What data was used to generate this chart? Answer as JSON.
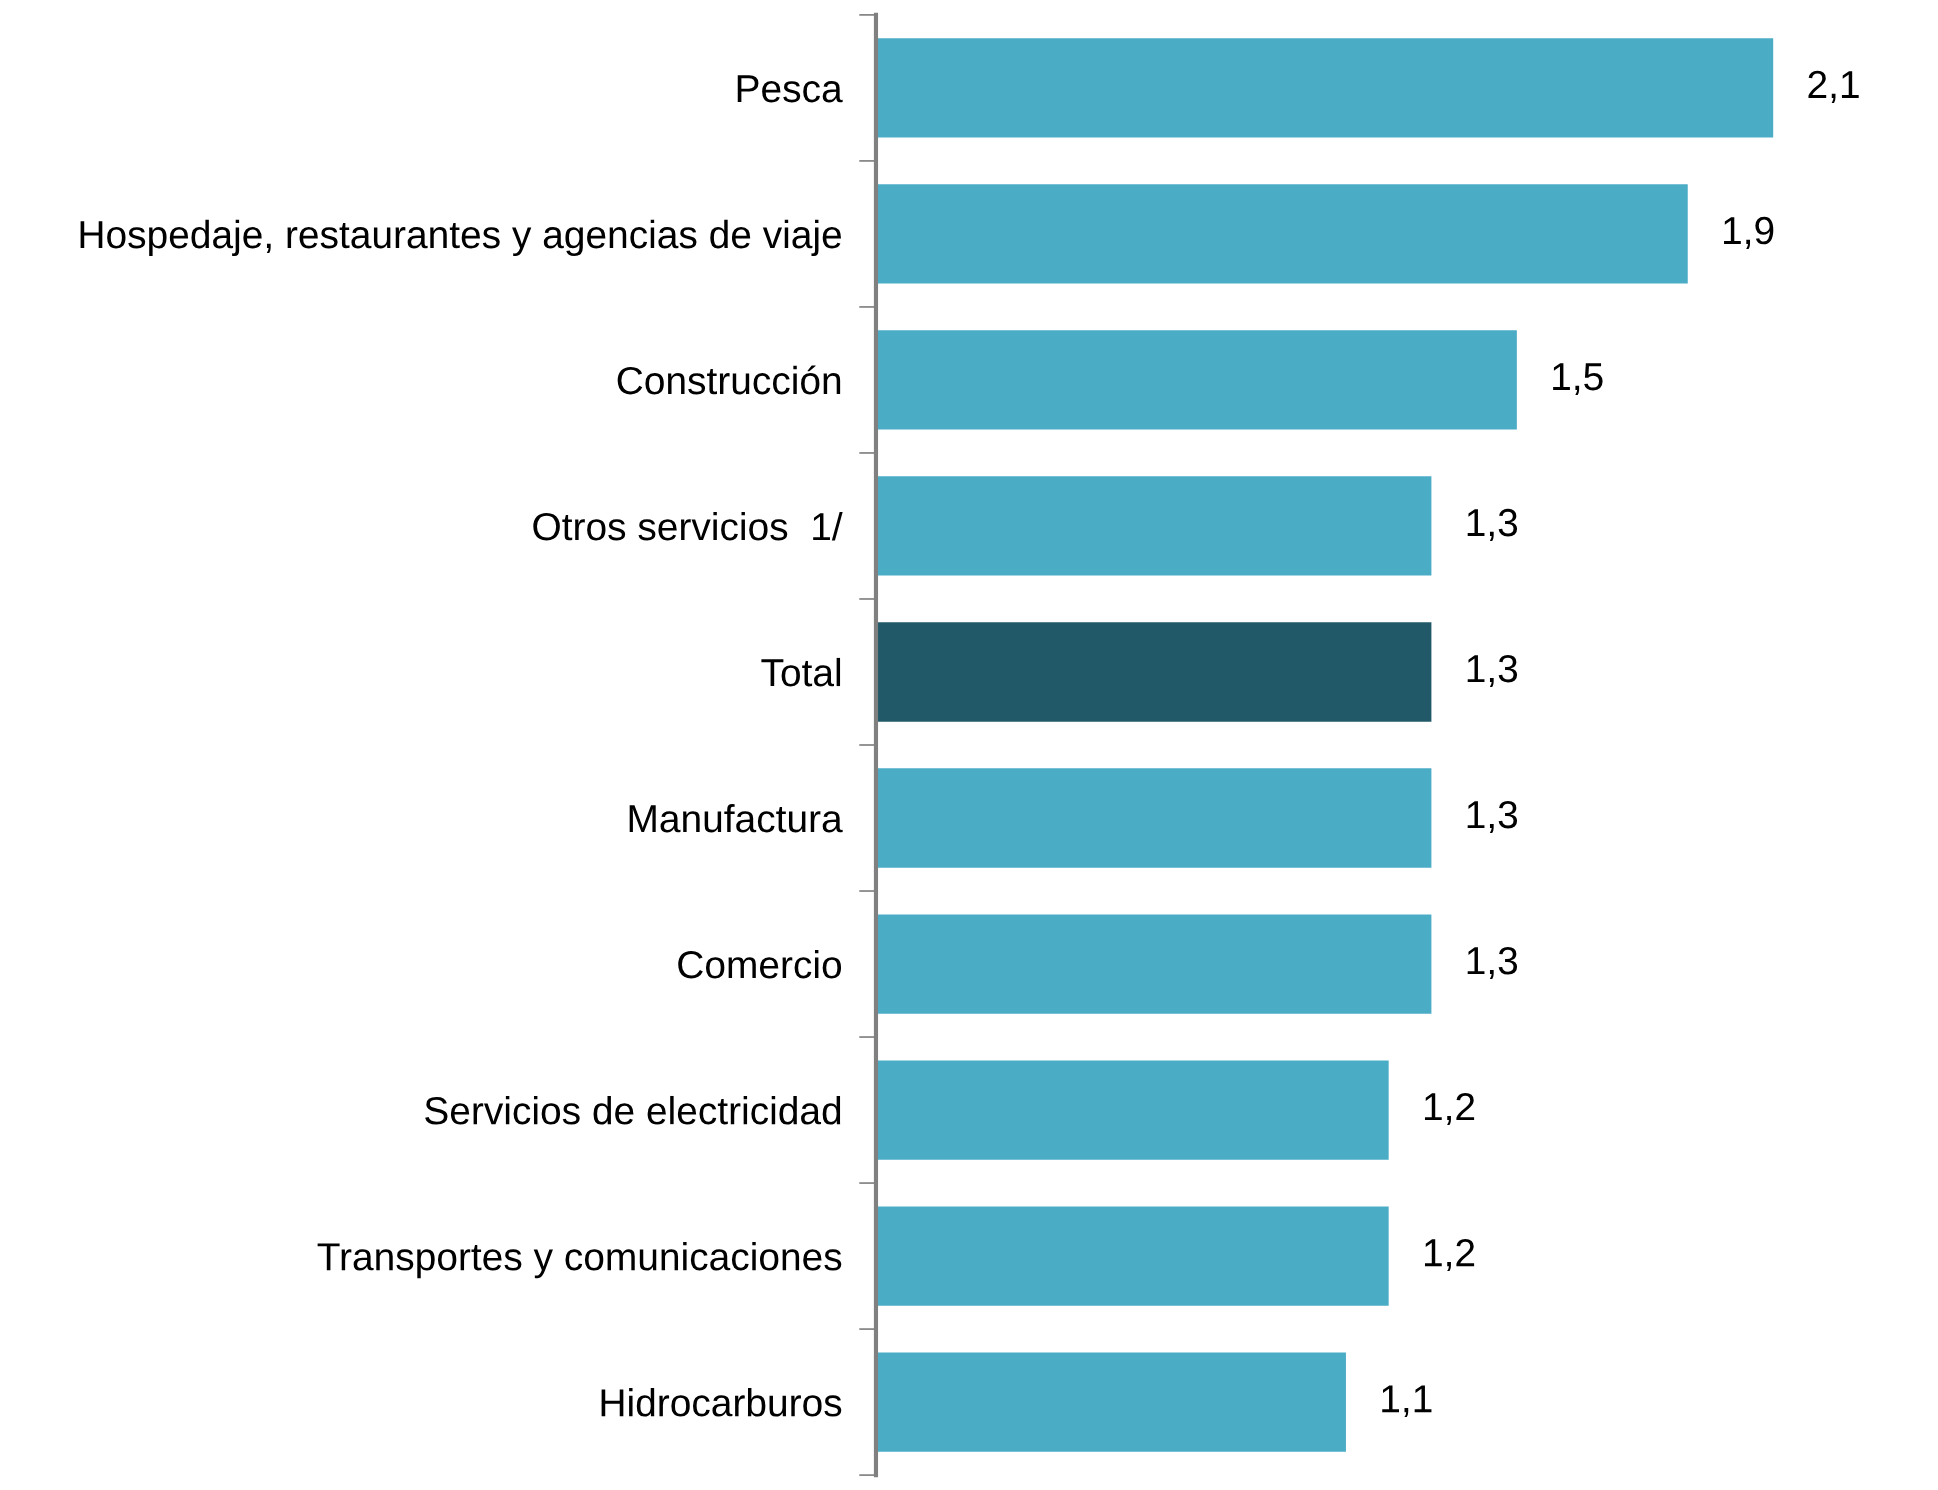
{
  "chart_data": {
    "type": "bar",
    "orientation": "horizontal",
    "categories": [
      "Pesca",
      "Hospedaje, restaurantes y agencias de viaje",
      "Construcción",
      "Otros servicios  1/",
      "Total",
      "Manufactura",
      "Comercio",
      "Servicios de electricidad",
      "Transportes y comunicaciones",
      "Hidrocarburos"
    ],
    "values": [
      2.1,
      1.9,
      1.5,
      1.3,
      1.3,
      1.3,
      1.3,
      1.2,
      1.2,
      1.1
    ],
    "value_labels": [
      "2,1",
      "1,9",
      "1,5",
      "1,3",
      "1,3",
      "1,3",
      "1,3",
      "1,2",
      "1,2",
      "1,1"
    ],
    "colors": [
      "#4bacc6",
      "#4bacc6",
      "#4bacc6",
      "#4bacc6",
      "#215968",
      "#4bacc6",
      "#4bacc6",
      "#4bacc6",
      "#4bacc6",
      "#4bacc6"
    ],
    "grid": false,
    "legend": false,
    "tick_labels": "y"
  }
}
